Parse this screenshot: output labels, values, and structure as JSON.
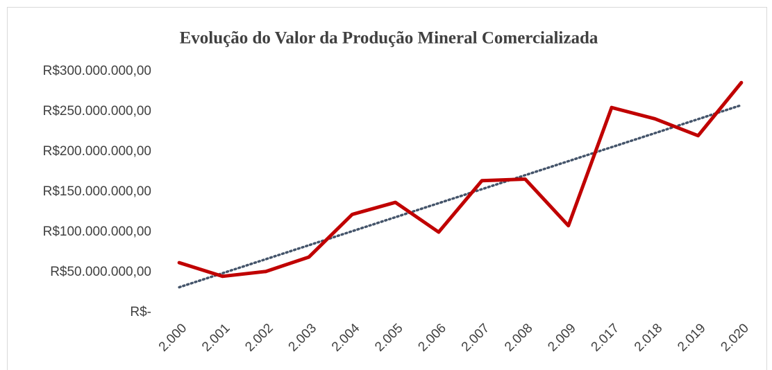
{
  "chart_data": {
    "type": "line",
    "title": "Evolução do Valor da Produção Mineral Comercializada",
    "categories": [
      "2.000",
      "2.001",
      "2.002",
      "2.003",
      "2.004",
      "2.005",
      "2.006",
      "2.007",
      "2.008",
      "2.009",
      "2.017",
      "2.018",
      "2.019",
      "2.020"
    ],
    "values": [
      62000000,
      45000000,
      51000000,
      69000000,
      122000000,
      137000000,
      100000000,
      164000000,
      166000000,
      108000000,
      255000000,
      241000000,
      220000000,
      286000000
    ],
    "color": "#c00000",
    "trendline": {
      "kind": "linear",
      "color": "#44546a",
      "style": "dotted"
    },
    "ylim": [
      0,
      300000000
    ],
    "yticks": [
      {
        "value": 0,
        "label": "R$-"
      },
      {
        "value": 50000000,
        "label": "R$50.000.000,00"
      },
      {
        "value": 100000000,
        "label": "R$100.000.000,00"
      },
      {
        "value": 150000000,
        "label": "R$150.000.000,00"
      },
      {
        "value": 200000000,
        "label": "R$200.000.000,00"
      },
      {
        "value": 250000000,
        "label": "R$250.000.000,00"
      },
      {
        "value": 300000000,
        "label": "R$300.000.000,00"
      }
    ],
    "grid": false
  }
}
